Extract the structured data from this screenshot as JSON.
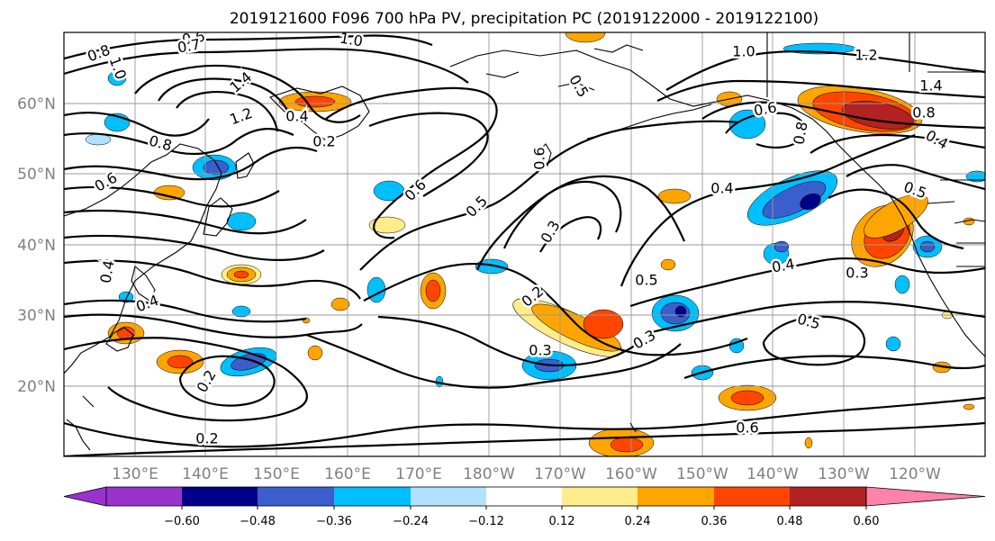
{
  "title": "2019121600 F096 700 hPa PV, precipitation PC (2019122000 - 2019122100)",
  "lat_labels": [
    "60°N",
    "50°N",
    "40°N",
    "30°N",
    "20°N"
  ],
  "lon_labels": [
    "130°E",
    "140°E",
    "150°E",
    "160°E",
    "170°E",
    "180°W",
    "170°W",
    "160°W",
    "150°W",
    "140°W",
    "130°W",
    "120°W"
  ],
  "colorbar": {
    "ticks": [
      "−0.60",
      "−0.48",
      "−0.36",
      "−0.24",
      "−0.12",
      "0.12",
      "0.24",
      "0.36",
      "0.48",
      "0.60"
    ],
    "colors": [
      "#9a32cd",
      "#00008b",
      "#3a5fcd",
      "#00bfff",
      "#b0e2ff",
      "#ffffff",
      "#ffec8b",
      "#ffa500",
      "#ff4500",
      "#b22222",
      "#ff82ab"
    ]
  },
  "contour_labels": [
    "0.8",
    "0.6",
    "0.7",
    "1.0",
    "1.4",
    "1.2",
    "0.8",
    "0.6",
    "0.4",
    "0.6",
    "0.5",
    "0.3",
    "0.5",
    "0.2",
    "0.3",
    "0.3",
    "0.4",
    "0.2",
    "0.2",
    "1.0",
    "1.2",
    "1.4",
    "0.8",
    "0.4",
    "0.6",
    "0.4",
    "0.5",
    "0.4",
    "0.3",
    "0.4",
    "0.2",
    "0.8",
    "0.5",
    "0.5",
    "1.0",
    "0.6",
    "0.6"
  ]
}
